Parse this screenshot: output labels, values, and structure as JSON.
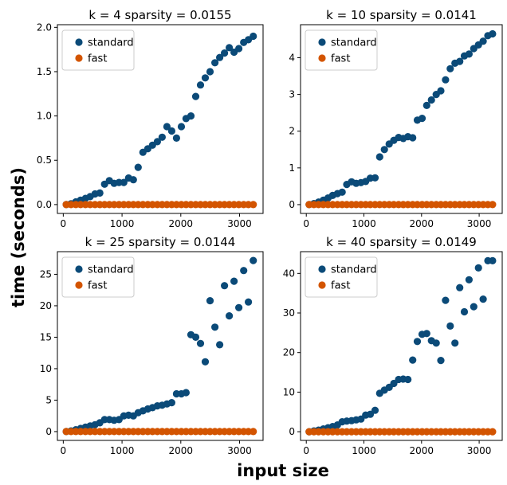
{
  "figure": {
    "ylabel": "time (seconds)",
    "xlabel": "input size"
  },
  "colors": {
    "standard": "#0b4a78",
    "fast": "#d35400"
  },
  "chart_data": [
    {
      "type": "scatter",
      "title": "k = 4 sparsity = 0.0155",
      "xlim": [
        -100,
        3400
      ],
      "ylim": [
        -0.1,
        2.03
      ],
      "xticks": [
        0,
        1000,
        2000,
        3000
      ],
      "xtick_labels": [
        "0",
        "1000",
        "2000",
        "3000"
      ],
      "yticks": [
        0,
        0.5,
        1,
        1.5,
        2
      ],
      "ytick_labels": [
        "0.0",
        "0.5",
        "1.0",
        "1.5",
        "2.0"
      ],
      "legend": [
        "standard",
        "fast"
      ],
      "legend_position": "top-left",
      "series": [
        {
          "name": "standard",
          "x": [
            50,
            132,
            213,
            295,
            377,
            458,
            540,
            622,
            703,
            785,
            866,
            948,
            1030,
            1111,
            1193,
            1274,
            1356,
            1438,
            1519,
            1601,
            1682,
            1764,
            1846,
            1927,
            2009,
            2090,
            2172,
            2254,
            2335,
            2417,
            2498,
            2580,
            2662,
            2743,
            2825,
            2906,
            2988,
            3070,
            3151,
            3233
          ],
          "y": [
            0.0,
            0.01,
            0.03,
            0.05,
            0.07,
            0.09,
            0.12,
            0.13,
            0.23,
            0.27,
            0.24,
            0.25,
            0.25,
            0.3,
            0.28,
            0.42,
            0.59,
            0.63,
            0.67,
            0.71,
            0.76,
            0.88,
            0.83,
            0.75,
            0.88,
            0.97,
            1.0,
            1.22,
            1.35,
            1.43,
            1.5,
            1.6,
            1.66,
            1.71,
            1.77,
            1.72,
            1.76,
            1.83,
            1.86,
            1.9
          ]
        },
        {
          "name": "fast",
          "x": [
            50,
            132,
            213,
            295,
            377,
            458,
            540,
            622,
            703,
            785,
            866,
            948,
            1030,
            1111,
            1193,
            1274,
            1356,
            1438,
            1519,
            1601,
            1682,
            1764,
            1846,
            1927,
            2009,
            2090,
            2172,
            2254,
            2335,
            2417,
            2498,
            2580,
            2662,
            2743,
            2825,
            2906,
            2988,
            3070,
            3151,
            3233
          ],
          "y": [
            0,
            0,
            0,
            0,
            0,
            0,
            0,
            0,
            0,
            0,
            0,
            0,
            0,
            0,
            0,
            0,
            0,
            0,
            0,
            0,
            0,
            0,
            0,
            0,
            0,
            0,
            0,
            0,
            0,
            0,
            0,
            0,
            0,
            0,
            0,
            0,
            0,
            0,
            0,
            0
          ]
        }
      ]
    },
    {
      "type": "scatter",
      "title": "k = 10 sparsity = 0.0141",
      "xlim": [
        -100,
        3400
      ],
      "ylim": [
        -0.24,
        4.9
      ],
      "xticks": [
        0,
        1000,
        2000,
        3000
      ],
      "xtick_labels": [
        "0",
        "1000",
        "2000",
        "3000"
      ],
      "yticks": [
        0,
        1,
        2,
        3,
        4
      ],
      "ytick_labels": [
        "0",
        "1",
        "2",
        "3",
        "4"
      ],
      "legend": [
        "standard",
        "fast"
      ],
      "legend_position": "top-left",
      "series": [
        {
          "name": "standard",
          "x": [
            50,
            132,
            213,
            295,
            377,
            458,
            540,
            622,
            703,
            785,
            866,
            948,
            1030,
            1111,
            1193,
            1274,
            1356,
            1438,
            1519,
            1601,
            1682,
            1764,
            1846,
            1927,
            2009,
            2090,
            2172,
            2254,
            2335,
            2417,
            2498,
            2580,
            2662,
            2743,
            2825,
            2906,
            2988,
            3070,
            3151,
            3233
          ],
          "y": [
            0.0,
            0.03,
            0.07,
            0.12,
            0.18,
            0.25,
            0.3,
            0.34,
            0.55,
            0.62,
            0.58,
            0.6,
            0.63,
            0.72,
            0.73,
            1.3,
            1.5,
            1.65,
            1.75,
            1.83,
            1.8,
            1.85,
            1.82,
            2.3,
            2.35,
            2.7,
            2.85,
            3.0,
            3.1,
            3.4,
            3.7,
            3.85,
            3.9,
            4.05,
            4.1,
            4.25,
            4.35,
            4.45,
            4.6,
            4.65
          ]
        },
        {
          "name": "fast",
          "x": [
            50,
            132,
            213,
            295,
            377,
            458,
            540,
            622,
            703,
            785,
            866,
            948,
            1030,
            1111,
            1193,
            1274,
            1356,
            1438,
            1519,
            1601,
            1682,
            1764,
            1846,
            1927,
            2009,
            2090,
            2172,
            2254,
            2335,
            2417,
            2498,
            2580,
            2662,
            2743,
            2825,
            2906,
            2988,
            3070,
            3151,
            3233
          ],
          "y": [
            0,
            0,
            0,
            0,
            0,
            0,
            0,
            0,
            0,
            0,
            0,
            0,
            0,
            0,
            0,
            0,
            0,
            0,
            0,
            0,
            0,
            0,
            0,
            0,
            0,
            0,
            0,
            0,
            0,
            0,
            0,
            0,
            0,
            0,
            0,
            0,
            0,
            0,
            0,
            0
          ]
        }
      ]
    },
    {
      "type": "scatter",
      "title": "k = 25 sparsity = 0.0144",
      "xlim": [
        -100,
        3400
      ],
      "ylim": [
        -1.4,
        28.6
      ],
      "xticks": [
        0,
        1000,
        2000,
        3000
      ],
      "xtick_labels": [
        "0",
        "1000",
        "2000",
        "3000"
      ],
      "yticks": [
        0,
        5,
        10,
        15,
        20,
        25
      ],
      "ytick_labels": [
        "0",
        "5",
        "10",
        "15",
        "20",
        "25"
      ],
      "legend": [
        "standard",
        "fast"
      ],
      "legend_position": "top-left",
      "series": [
        {
          "name": "standard",
          "x": [
            50,
            132,
            213,
            295,
            377,
            458,
            540,
            622,
            703,
            785,
            866,
            948,
            1030,
            1111,
            1193,
            1274,
            1356,
            1438,
            1519,
            1601,
            1682,
            1764,
            1846,
            1927,
            2009,
            2090,
            2172,
            2254,
            2335,
            2417,
            2498,
            2580,
            2662,
            2743,
            2825,
            2906,
            2988,
            3070,
            3151,
            3233
          ],
          "y": [
            0.0,
            0.1,
            0.3,
            0.5,
            0.7,
            0.9,
            1.1,
            1.4,
            1.9,
            1.9,
            1.8,
            1.9,
            2.5,
            2.6,
            2.5,
            3.0,
            3.3,
            3.6,
            3.8,
            4.1,
            4.2,
            4.4,
            4.6,
            6.0,
            6.0,
            6.2,
            15.4,
            15.0,
            14.0,
            11.1,
            20.8,
            16.6,
            13.8,
            23.2,
            18.4,
            23.9,
            19.7,
            25.6,
            20.6,
            27.2
          ]
        },
        {
          "name": "fast",
          "x": [
            50,
            132,
            213,
            295,
            377,
            458,
            540,
            622,
            703,
            785,
            866,
            948,
            1030,
            1111,
            1193,
            1274,
            1356,
            1438,
            1519,
            1601,
            1682,
            1764,
            1846,
            1927,
            2009,
            2090,
            2172,
            2254,
            2335,
            2417,
            2498,
            2580,
            2662,
            2743,
            2825,
            2906,
            2988,
            3070,
            3151,
            3233
          ],
          "y": [
            0,
            0,
            0,
            0,
            0,
            0,
            0,
            0,
            0,
            0,
            0,
            0,
            0,
            0,
            0,
            0,
            0,
            0,
            0,
            0,
            0,
            0,
            0,
            0,
            0,
            0,
            0,
            0,
            0,
            0,
            0,
            0,
            0,
            0,
            0,
            0,
            0,
            0,
            0,
            0
          ]
        }
      ]
    },
    {
      "type": "scatter",
      "title": "k = 40 sparsity = 0.0149",
      "xlim": [
        -100,
        3400
      ],
      "ylim": [
        -2.2,
        45.5
      ],
      "xticks": [
        0,
        1000,
        2000,
        3000
      ],
      "xtick_labels": [
        "0",
        "1000",
        "2000",
        "3000"
      ],
      "yticks": [
        0,
        10,
        20,
        30,
        40
      ],
      "ytick_labels": [
        "0",
        "10",
        "20",
        "30",
        "40"
      ],
      "legend": [
        "standard",
        "fast"
      ],
      "legend_position": "top-left",
      "series": [
        {
          "name": "standard",
          "x": [
            50,
            132,
            213,
            295,
            377,
            458,
            540,
            622,
            703,
            785,
            866,
            948,
            1030,
            1111,
            1193,
            1274,
            1356,
            1438,
            1519,
            1601,
            1682,
            1764,
            1846,
            1927,
            2009,
            2090,
            2172,
            2254,
            2335,
            2417,
            2498,
            2580,
            2662,
            2743,
            2825,
            2906,
            2988,
            3070,
            3151,
            3233
          ],
          "y": [
            0.0,
            0.2,
            0.4,
            0.7,
            1.0,
            1.3,
            1.7,
            2.5,
            2.7,
            2.8,
            3.0,
            3.2,
            4.2,
            4.4,
            5.4,
            9.7,
            10.5,
            11.2,
            12.2,
            13.2,
            13.3,
            13.2,
            18.1,
            22.8,
            24.6,
            24.8,
            23.0,
            22.4,
            18.0,
            33.2,
            26.7,
            22.4,
            36.4,
            30.3,
            38.4,
            31.6,
            41.4,
            33.5,
            43.2,
            43.2
          ]
        },
        {
          "name": "fast",
          "x": [
            50,
            132,
            213,
            295,
            377,
            458,
            540,
            622,
            703,
            785,
            866,
            948,
            1030,
            1111,
            1193,
            1274,
            1356,
            1438,
            1519,
            1601,
            1682,
            1764,
            1846,
            1927,
            2009,
            2090,
            2172,
            2254,
            2335,
            2417,
            2498,
            2580,
            2662,
            2743,
            2825,
            2906,
            2988,
            3070,
            3151,
            3233
          ],
          "y": [
            0,
            0,
            0,
            0,
            0,
            0,
            0,
            0,
            0,
            0,
            0,
            0,
            0,
            0,
            0,
            0,
            0,
            0,
            0,
            0,
            0,
            0,
            0,
            0,
            0,
            0,
            0,
            0,
            0,
            0,
            0,
            0,
            0,
            0,
            0,
            0,
            0,
            0,
            0,
            0
          ]
        }
      ]
    }
  ]
}
